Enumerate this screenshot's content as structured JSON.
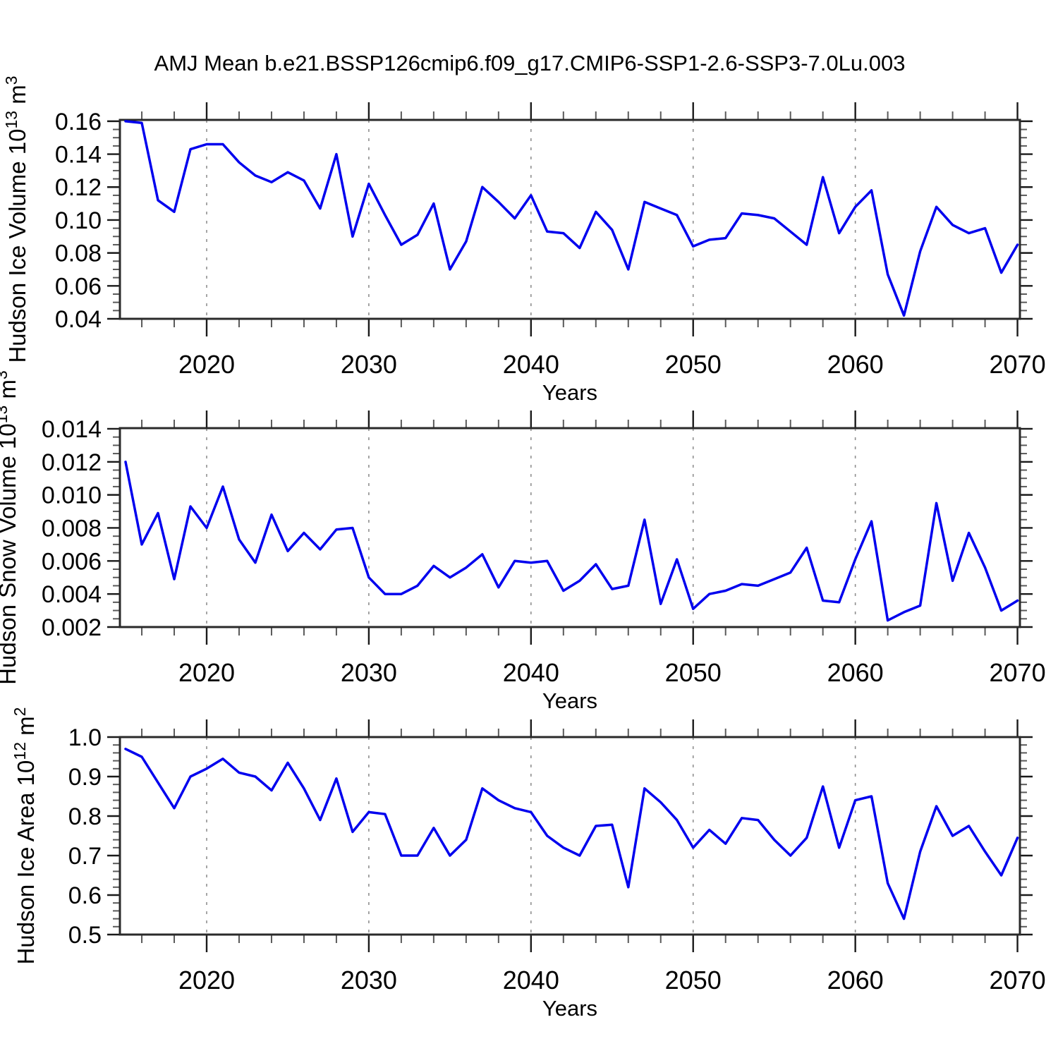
{
  "title": "AMJ Mean b.e21.BSSP126cmip6.f09_g17.CMIP6-SSP1-2.6-SSP3-7.0Lu.003",
  "colors": {
    "line": "#0000ee",
    "grid": "#8f8f8f",
    "frame": "#2a2a2a",
    "major_tick": "#1a1a1a",
    "minor_tick": "#5a5a5a",
    "background": "#ffffff"
  },
  "chart_data": [
    {
      "type": "line",
      "name": "hudson-ice-volume",
      "ylabel_segments": [
        {
          "t": "Hudson Ice Volume 10"
        },
        {
          "t": "13",
          "sup": true
        },
        {
          "t": " m"
        },
        {
          "t": "3",
          "sup": true
        }
      ],
      "xlabel": "Years",
      "x": [
        2015,
        2016,
        2017,
        2018,
        2019,
        2020,
        2021,
        2022,
        2023,
        2024,
        2025,
        2026,
        2027,
        2028,
        2029,
        2030,
        2031,
        2032,
        2033,
        2034,
        2035,
        2036,
        2037,
        2038,
        2039,
        2040,
        2041,
        2042,
        2043,
        2044,
        2045,
        2046,
        2047,
        2048,
        2049,
        2050,
        2051,
        2052,
        2053,
        2054,
        2055,
        2056,
        2057,
        2058,
        2059,
        2060,
        2061,
        2062,
        2063,
        2064,
        2065,
        2066,
        2067,
        2068,
        2069,
        2070
      ],
      "values": [
        0.16,
        0.159,
        0.112,
        0.105,
        0.143,
        0.146,
        0.146,
        0.135,
        0.127,
        0.123,
        0.129,
        0.124,
        0.107,
        0.14,
        0.09,
        0.122,
        0.103,
        0.085,
        0.091,
        0.11,
        0.07,
        0.087,
        0.12,
        0.111,
        0.101,
        0.115,
        0.093,
        0.092,
        0.083,
        0.105,
        0.094,
        0.07,
        0.111,
        0.107,
        0.103,
        0.084,
        0.088,
        0.089,
        0.104,
        0.103,
        0.101,
        0.093,
        0.085,
        0.126,
        0.092,
        0.108,
        0.118,
        0.067,
        0.042,
        0.081,
        0.108,
        0.097,
        0.092,
        0.095,
        0.068,
        0.085
      ],
      "ylim": [
        0.04,
        0.1608
      ],
      "yticks": [
        0.04,
        0.06,
        0.08,
        0.1,
        0.12,
        0.14,
        0.16
      ],
      "ytick_labels": [
        "0.04",
        "0.06",
        "0.08",
        "0.10",
        "0.12",
        "0.14",
        "0.16"
      ],
      "y_minor_step": 0.005,
      "xlim": [
        2014.65,
        2070.15
      ],
      "xticks": [
        2020,
        2030,
        2040,
        2050,
        2060,
        2070
      ],
      "xtick_labels": [
        "2020",
        "2030",
        "2040",
        "2050",
        "2060",
        "2070"
      ],
      "x_minor_step": 2,
      "grid_x": [
        2020,
        2030,
        2040,
        2050,
        2060
      ]
    },
    {
      "type": "line",
      "name": "hudson-snow-volume",
      "ylabel_segments": [
        {
          "t": "Hudson Snow Volume 10"
        },
        {
          "t": "13",
          "sup": true
        },
        {
          "t": " m"
        },
        {
          "t": "3",
          "sup": true
        }
      ],
      "xlabel": "Years",
      "x": [
        2015,
        2016,
        2017,
        2018,
        2019,
        2020,
        2021,
        2022,
        2023,
        2024,
        2025,
        2026,
        2027,
        2028,
        2029,
        2030,
        2031,
        2032,
        2033,
        2034,
        2035,
        2036,
        2037,
        2038,
        2039,
        2040,
        2041,
        2042,
        2043,
        2044,
        2045,
        2046,
        2047,
        2048,
        2049,
        2050,
        2051,
        2052,
        2053,
        2054,
        2055,
        2056,
        2057,
        2058,
        2059,
        2060,
        2061,
        2062,
        2063,
        2064,
        2065,
        2066,
        2067,
        2068,
        2069,
        2070
      ],
      "values": [
        0.012,
        0.007,
        0.0089,
        0.0049,
        0.0093,
        0.008,
        0.0105,
        0.0073,
        0.0059,
        0.0088,
        0.0066,
        0.0077,
        0.0067,
        0.0079,
        0.008,
        0.005,
        0.004,
        0.004,
        0.0045,
        0.0057,
        0.005,
        0.0056,
        0.0064,
        0.0044,
        0.006,
        0.0059,
        0.006,
        0.0042,
        0.0048,
        0.0058,
        0.0043,
        0.0045,
        0.0085,
        0.0034,
        0.0061,
        0.0031,
        0.004,
        0.0042,
        0.0046,
        0.0045,
        0.0049,
        0.0053,
        0.0068,
        0.0036,
        0.0035,
        0.0061,
        0.0084,
        0.0024,
        0.0029,
        0.0033,
        0.0095,
        0.0048,
        0.0077,
        0.0056,
        0.003,
        0.0036
      ],
      "ylim": [
        0.002,
        0.01404
      ],
      "yticks": [
        0.002,
        0.004,
        0.006,
        0.008,
        0.01,
        0.012,
        0.014
      ],
      "ytick_labels": [
        "0.002",
        "0.004",
        "0.006",
        "0.008",
        "0.010",
        "0.012",
        "0.014"
      ],
      "y_minor_step": 0.0005,
      "xlim": [
        2014.65,
        2070.15
      ],
      "xticks": [
        2020,
        2030,
        2040,
        2050,
        2060,
        2070
      ],
      "xtick_labels": [
        "2020",
        "2030",
        "2040",
        "2050",
        "2060",
        "2070"
      ],
      "x_minor_step": 2,
      "grid_x": [
        2020,
        2030,
        2040,
        2050,
        2060
      ]
    },
    {
      "type": "line",
      "name": "hudson-ice-area",
      "ylabel_segments": [
        {
          "t": "Hudson Ice Area 10"
        },
        {
          "t": "12",
          "sup": true
        },
        {
          "t": " m"
        },
        {
          "t": "2",
          "sup": true
        }
      ],
      "xlabel": "Years",
      "x": [
        2015,
        2016,
        2017,
        2018,
        2019,
        2020,
        2021,
        2022,
        2023,
        2024,
        2025,
        2026,
        2027,
        2028,
        2029,
        2030,
        2031,
        2032,
        2033,
        2034,
        2035,
        2036,
        2037,
        2038,
        2039,
        2040,
        2041,
        2042,
        2043,
        2044,
        2045,
        2046,
        2047,
        2048,
        2049,
        2050,
        2051,
        2052,
        2053,
        2054,
        2055,
        2056,
        2057,
        2058,
        2059,
        2060,
        2061,
        2062,
        2063,
        2064,
        2065,
        2066,
        2067,
        2068,
        2069,
        2070
      ],
      "values": [
        0.97,
        0.95,
        0.885,
        0.82,
        0.9,
        0.92,
        0.945,
        0.91,
        0.9,
        0.865,
        0.935,
        0.87,
        0.79,
        0.895,
        0.76,
        0.81,
        0.805,
        0.7,
        0.7,
        0.77,
        0.7,
        0.74,
        0.87,
        0.84,
        0.82,
        0.81,
        0.75,
        0.72,
        0.7,
        0.775,
        0.778,
        0.62,
        0.87,
        0.835,
        0.79,
        0.72,
        0.765,
        0.73,
        0.795,
        0.79,
        0.74,
        0.7,
        0.745,
        0.875,
        0.72,
        0.84,
        0.85,
        0.63,
        0.54,
        0.71,
        0.825,
        0.75,
        0.775,
        0.71,
        0.65,
        0.745
      ],
      "ylim": [
        0.5,
        1.0
      ],
      "yticks": [
        0.5,
        0.6,
        0.7,
        0.8,
        0.9,
        1.0
      ],
      "ytick_labels": [
        "0.5",
        "0.6",
        "0.7",
        "0.8",
        "0.9",
        "1.0"
      ],
      "y_minor_step": 0.02,
      "xlim": [
        2014.65,
        2070.15
      ],
      "xticks": [
        2020,
        2030,
        2040,
        2050,
        2060,
        2070
      ],
      "xtick_labels": [
        "2020",
        "2030",
        "2040",
        "2050",
        "2060",
        "2070"
      ],
      "x_minor_step": 2,
      "grid_x": [
        2020,
        2030,
        2040,
        2050,
        2060
      ]
    }
  ]
}
